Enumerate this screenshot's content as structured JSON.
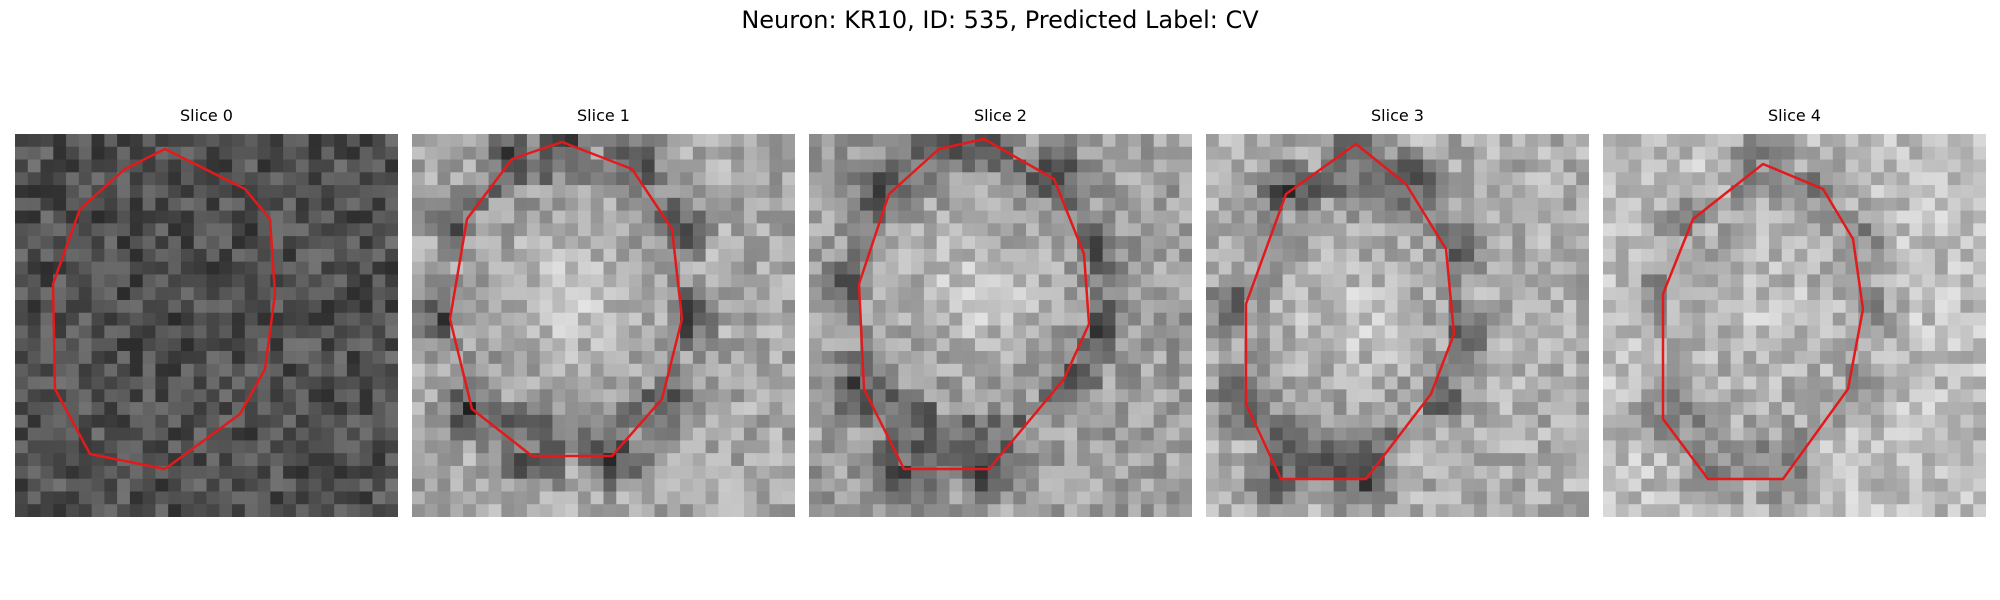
{
  "figure": {
    "title": "Neuron: KR10, ID: 535, Predicted Label: CV",
    "contour_color": "#e31a1c",
    "colormap": "grayscale",
    "panels": [
      {
        "title": "Slice 0",
        "seed": 11,
        "base": 0.32,
        "ring": 0.3,
        "inner": 0.3,
        "ring_shade": 0.32
      },
      {
        "title": "Slice 1",
        "seed": 23,
        "base": 0.66,
        "ring": 0.22,
        "inner": 0.8,
        "ring_shade": 0.38
      },
      {
        "title": "Slice 2",
        "seed": 37,
        "base": 0.62,
        "ring": 0.2,
        "inner": 0.8,
        "ring_shade": 0.36
      },
      {
        "title": "Slice 3",
        "seed": 41,
        "base": 0.68,
        "ring": 0.24,
        "inner": 0.8,
        "ring_shade": 0.36
      },
      {
        "title": "Slice 4",
        "seed": 53,
        "base": 0.75,
        "ring": 0.42,
        "inner": 0.78,
        "ring_shade": 0.5
      }
    ]
  }
}
